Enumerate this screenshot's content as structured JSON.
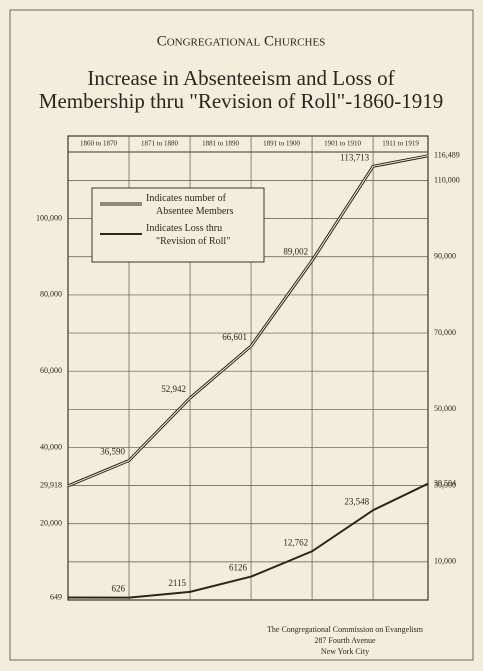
{
  "chart_data": {
    "type": "line",
    "kicker": "Congregational Churches",
    "title": [
      "Increase in Absenteeism and Loss of",
      "Membership thru \"Revision of Roll\"-1860-1919"
    ],
    "periods": [
      "1860 to 1870",
      "1871 to 1880",
      "1881 to 1890",
      "1891 to 1900",
      "1901 to 1910",
      "1911 to 1919"
    ],
    "x": [
      1860,
      1870,
      1880,
      1890,
      1900,
      1910,
      1919
    ],
    "xlim": [
      1860,
      1919
    ],
    "series": [
      {
        "name": "Indicates number of Absentee Members",
        "color": "#2a2620",
        "style": "double",
        "values": [
          29918,
          36590,
          52942,
          66601,
          89002,
          113713,
          116489
        ],
        "value_labels": [
          "29,918",
          "36,590",
          "52,942",
          "66,601",
          "89,002",
          "113,713",
          "116,489"
        ]
      },
      {
        "name": "Indicates Loss thru \"Revision of Roll\"",
        "color": "#2a2620",
        "style": "single",
        "axis": "y2",
        "values": [
          649,
          626,
          2115,
          6126,
          12762,
          23548,
          30504
        ],
        "value_labels": [
          "649",
          "626",
          "2115",
          "6126",
          "12,762",
          "23,548",
          "30,504"
        ]
      }
    ],
    "ylim": [
      0,
      118000
    ],
    "yticks": [
      {
        "value": 20000,
        "label": "20,000"
      },
      {
        "value": 40000,
        "label": "40,000"
      },
      {
        "value": 60000,
        "label": "60,000"
      },
      {
        "value": 80000,
        "label": "80,000"
      },
      {
        "value": 100000,
        "label": "100,000"
      }
    ],
    "y2lim": [
      0,
      118000
    ],
    "y2ticks": [
      {
        "value": 10000,
        "label": "10,000"
      },
      {
        "value": 30000,
        "label": "30,000"
      },
      {
        "value": 50000,
        "label": "50,000"
      },
      {
        "value": 70000,
        "label": "70,000"
      },
      {
        "value": 90000,
        "label": "90,000"
      },
      {
        "value": 110000,
        "label": "110,000"
      }
    ],
    "grid": true,
    "legend": "upper left",
    "footer": [
      "The Congregational Commission on Evangelism",
      "287 Fourth Avenue",
      "New York City"
    ]
  }
}
